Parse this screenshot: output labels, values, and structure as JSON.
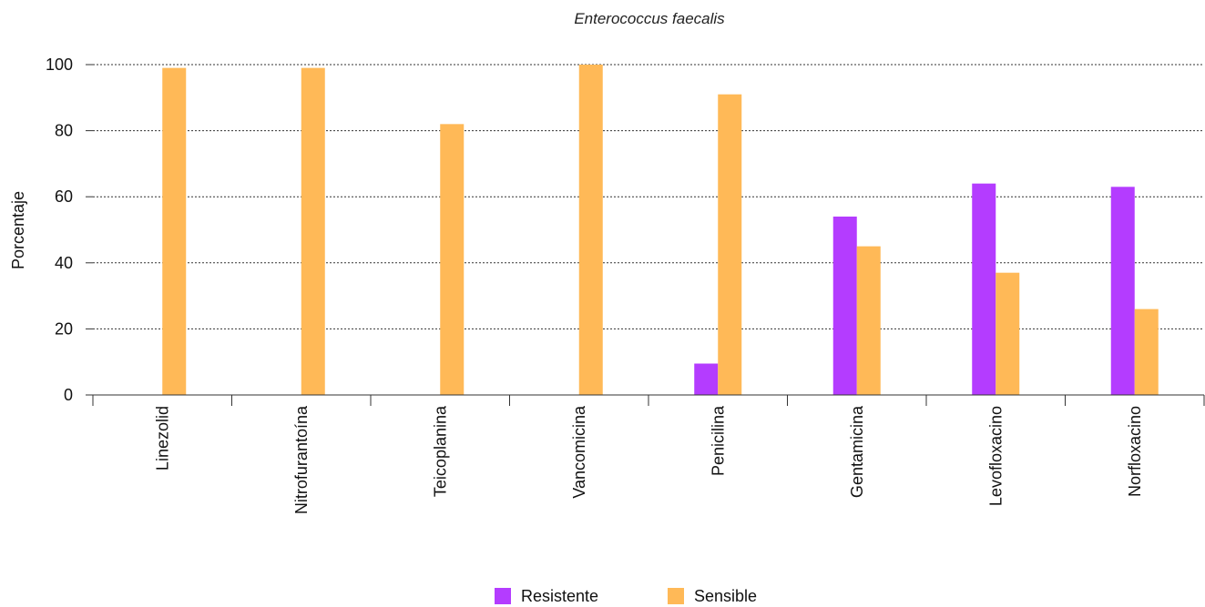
{
  "chart_data": {
    "type": "bar",
    "title": "Enterococcus faecalis",
    "xlabel": "",
    "ylabel": "Porcentaje",
    "ylim": [
      0,
      100
    ],
    "yticks": [
      0,
      20,
      40,
      60,
      80,
      100
    ],
    "grid": true,
    "legend_position": "bottom",
    "categories": [
      "Linezolid",
      "Nitrofurantoína",
      "Teicoplanina",
      "Vancomicina",
      "Penicilina",
      "Gentamicina",
      "Levofloxacino",
      "Norfloxacino"
    ],
    "series": [
      {
        "name": "Resistente",
        "color": "#b43cff",
        "values": [
          0,
          0,
          0,
          0,
          9.5,
          54,
          64,
          63
        ]
      },
      {
        "name": "Sensible",
        "color": "#ffb957",
        "values": [
          99,
          99,
          82,
          100,
          91,
          45,
          37,
          26
        ]
      }
    ]
  }
}
